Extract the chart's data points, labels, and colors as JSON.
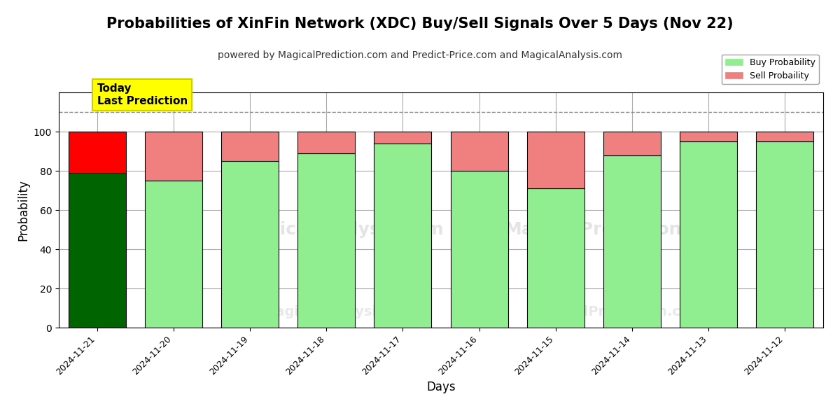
{
  "title": "Probabilities of XinFin Network (XDC) Buy/Sell Signals Over 5 Days (Nov 22)",
  "subtitle": "powered by MagicalPrediction.com and Predict-Price.com and MagicalAnalysis.com",
  "xlabel": "Days",
  "ylabel": "Probability",
  "watermark1": "MagicalAnalysis.com",
  "watermark2": "MagicalPrediction.com",
  "dates": [
    "2024-11-21",
    "2024-11-20",
    "2024-11-19",
    "2024-11-18",
    "2024-11-17",
    "2024-11-16",
    "2024-11-15",
    "2024-11-14",
    "2024-11-13",
    "2024-11-12"
  ],
  "buy_values": [
    79,
    75,
    85,
    89,
    94,
    80,
    71,
    88,
    95,
    95
  ],
  "sell_values": [
    21,
    25,
    15,
    11,
    6,
    20,
    29,
    12,
    5,
    5
  ],
  "today_buy_color": "#006400",
  "today_sell_color": "#ff0000",
  "buy_color": "#90EE90",
  "sell_color": "#F08080",
  "bar_edge_color": "#000000",
  "background_color": "#ffffff",
  "grid_color": "#aaaaaa",
  "ylim": [
    0,
    120
  ],
  "yticks": [
    0,
    20,
    40,
    60,
    80,
    100
  ],
  "dashed_line_y": 110,
  "today_label": "Today\nLast Prediction",
  "legend_buy": "Buy Probability",
  "legend_sell": "Sell Probaility",
  "title_fontsize": 15,
  "subtitle_fontsize": 10,
  "label_fontsize": 12
}
